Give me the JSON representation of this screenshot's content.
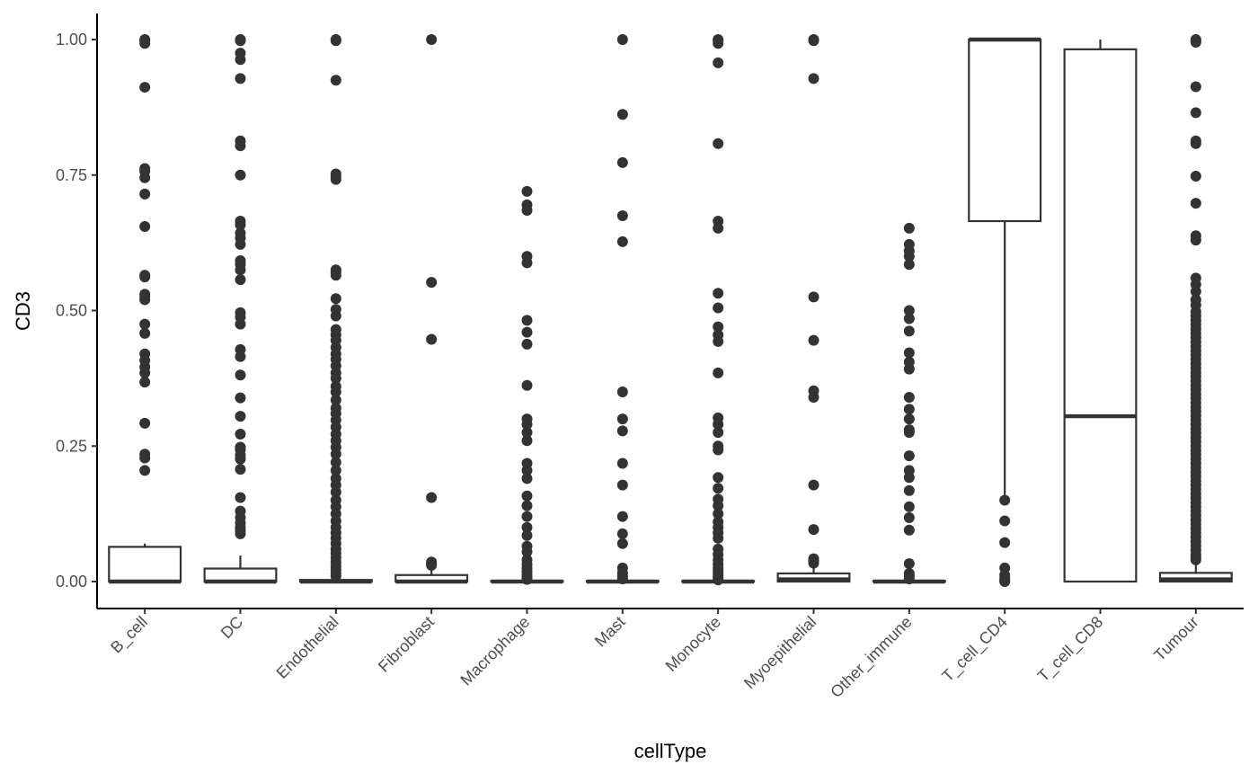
{
  "chart_data": {
    "type": "boxplot",
    "xlabel": "cellType",
    "ylabel": "CD3",
    "ylim": [
      -0.05,
      1.05
    ],
    "yticks": [
      0.0,
      0.25,
      0.5,
      0.75,
      1.0
    ],
    "ytick_labels": [
      "0.00",
      "0.25",
      "0.50",
      "0.75",
      "1.00"
    ],
    "grid": false,
    "colors": {
      "box_stroke": "#333333",
      "point": "#333333",
      "axis": "#000000",
      "tick_text": "#4d4d4d"
    },
    "categories": [
      "B_cell",
      "DC",
      "Endothelial",
      "Fibroblast",
      "Macrophage",
      "Mast",
      "Monocyte",
      "Myoepithelial",
      "Other_immune",
      "T_cell_CD4",
      "T_cell_CD8",
      "Tumour"
    ],
    "boxes": [
      {
        "category": "B_cell",
        "min": 0.0,
        "q1": 0.0,
        "median": 0.0,
        "q3": 0.064,
        "max": 0.07,
        "outliers": [
          1.0,
          0.998,
          0.993,
          0.912,
          0.762,
          0.757,
          0.745,
          0.715,
          0.655,
          0.565,
          0.562,
          0.53,
          0.525,
          0.52,
          0.475,
          0.458,
          0.42,
          0.408,
          0.396,
          0.385,
          0.368,
          0.292,
          0.235,
          0.228,
          0.205
        ]
      },
      {
        "category": "DC",
        "min": 0.0,
        "q1": 0.0,
        "median": 0.0,
        "q3": 0.024,
        "max": 0.048,
        "outliers": [
          1.0,
          0.998,
          0.975,
          0.963,
          0.928,
          0.813,
          0.804,
          0.75,
          0.665,
          0.658,
          0.643,
          0.634,
          0.622,
          0.592,
          0.585,
          0.575,
          0.557,
          0.496,
          0.488,
          0.475,
          0.428,
          0.415,
          0.381,
          0.339,
          0.305,
          0.272,
          0.248,
          0.243,
          0.233,
          0.226,
          0.207,
          0.155,
          0.13,
          0.118,
          0.108,
          0.1,
          0.094,
          0.088
        ]
      },
      {
        "category": "Endothelial",
        "min": 0.0,
        "q1": 0.0,
        "median": 0.0,
        "q3": 0.003,
        "max": 0.006,
        "outliers": [
          1.0,
          0.998,
          0.925,
          0.752,
          0.748,
          0.742,
          0.575,
          0.571,
          0.565,
          0.522,
          0.502,
          0.49,
          0.465,
          0.455,
          0.445,
          0.432,
          0.42,
          0.41,
          0.398,
          0.385,
          0.375,
          0.36,
          0.35,
          0.335,
          0.32,
          0.31,
          0.298,
          0.285,
          0.272,
          0.26,
          0.248,
          0.235,
          0.22,
          0.205,
          0.19,
          0.178,
          0.165,
          0.15,
          0.138,
          0.125,
          0.112,
          0.1,
          0.09,
          0.08,
          0.07,
          0.06,
          0.052,
          0.044,
          0.036,
          0.028,
          0.021,
          0.015,
          0.01
        ]
      },
      {
        "category": "Fibroblast",
        "min": 0.0,
        "q1": 0.0,
        "median": 0.0,
        "q3": 0.012,
        "max": 0.026,
        "outliers": [
          1.0,
          0.552,
          0.447,
          0.155,
          0.036,
          0.033,
          0.03
        ]
      },
      {
        "category": "Macrophage",
        "min": 0.0,
        "q1": 0.0,
        "median": 0.0,
        "q3": 0.001,
        "max": 0.002,
        "outliers": [
          0.72,
          0.695,
          0.685,
          0.6,
          0.588,
          0.482,
          0.46,
          0.438,
          0.362,
          0.3,
          0.29,
          0.275,
          0.26,
          0.218,
          0.205,
          0.19,
          0.158,
          0.14,
          0.12,
          0.1,
          0.085,
          0.065,
          0.055,
          0.04,
          0.032,
          0.025,
          0.018,
          0.012,
          0.007,
          0.004
        ]
      },
      {
        "category": "Mast",
        "min": 0.0,
        "q1": 0.0,
        "median": 0.0,
        "q3": 0.001,
        "max": 0.002,
        "outliers": [
          1.0,
          0.862,
          0.773,
          0.675,
          0.627,
          0.35,
          0.3,
          0.278,
          0.218,
          0.178,
          0.12,
          0.088,
          0.07,
          0.025,
          0.016,
          0.01,
          0.005
        ]
      },
      {
        "category": "Monocyte",
        "min": 0.0,
        "q1": 0.0,
        "median": 0.0,
        "q3": 0.001,
        "max": 0.002,
        "outliers": [
          1.0,
          0.998,
          0.993,
          0.957,
          0.808,
          0.665,
          0.652,
          0.532,
          0.505,
          0.47,
          0.455,
          0.443,
          0.385,
          0.302,
          0.29,
          0.275,
          0.25,
          0.243,
          0.192,
          0.172,
          0.152,
          0.14,
          0.125,
          0.11,
          0.1,
          0.09,
          0.08,
          0.06,
          0.05,
          0.04,
          0.032,
          0.025,
          0.02,
          0.015,
          0.01,
          0.006,
          0.003
        ]
      },
      {
        "category": "Myoepithelial",
        "min": 0.0,
        "q1": 0.0,
        "median": 0.004,
        "q3": 0.015,
        "max": 0.03,
        "outliers": [
          1.0,
          0.998,
          0.928,
          0.525,
          0.445,
          0.352,
          0.34,
          0.178,
          0.096,
          0.042,
          0.038,
          0.034
        ]
      },
      {
        "category": "Other_immune",
        "min": 0.0,
        "q1": 0.0,
        "median": 0.0,
        "q3": 0.001,
        "max": 0.002,
        "outliers": [
          0.652,
          0.622,
          0.61,
          0.6,
          0.585,
          0.5,
          0.485,
          0.462,
          0.422,
          0.405,
          0.392,
          0.34,
          0.318,
          0.3,
          0.28,
          0.275,
          0.232,
          0.205,
          0.192,
          0.168,
          0.138,
          0.118,
          0.095,
          0.033,
          0.015,
          0.01,
          0.005
        ]
      },
      {
        "category": "T_cell_CD4",
        "min": 0.16,
        "q1": 0.665,
        "median": 1.0,
        "q3": 1.0,
        "max": 1.0,
        "outliers": [
          0.15,
          0.112,
          0.072,
          0.025,
          0.012,
          0.006,
          0.002,
          0.0
        ]
      },
      {
        "category": "T_cell_CD8",
        "min": 0.0,
        "q1": 0.0,
        "median": 0.305,
        "q3": 0.982,
        "max": 1.0,
        "outliers": []
      },
      {
        "category": "Tumour",
        "min": 0.0,
        "q1": 0.0,
        "median": 0.004,
        "q3": 0.016,
        "max": 0.035,
        "outliers": [
          1.0,
          0.998,
          0.995,
          0.913,
          0.865,
          0.813,
          0.808,
          0.748,
          0.698,
          0.638,
          0.63,
          0.56,
          0.548,
          0.535,
          0.52,
          0.51,
          0.498,
          0.49,
          0.482,
          0.474,
          0.466,
          0.458,
          0.45,
          0.442,
          0.434,
          0.426,
          0.418,
          0.41,
          0.402,
          0.394,
          0.386,
          0.378,
          0.37,
          0.362,
          0.354,
          0.346,
          0.338,
          0.33,
          0.322,
          0.314,
          0.306,
          0.298,
          0.29,
          0.282,
          0.274,
          0.266,
          0.258,
          0.25,
          0.242,
          0.234,
          0.226,
          0.218,
          0.21,
          0.202,
          0.194,
          0.186,
          0.178,
          0.17,
          0.162,
          0.154,
          0.146,
          0.138,
          0.13,
          0.122,
          0.114,
          0.106,
          0.098,
          0.09,
          0.082,
          0.074,
          0.066,
          0.058,
          0.05,
          0.044,
          0.04
        ]
      }
    ]
  }
}
